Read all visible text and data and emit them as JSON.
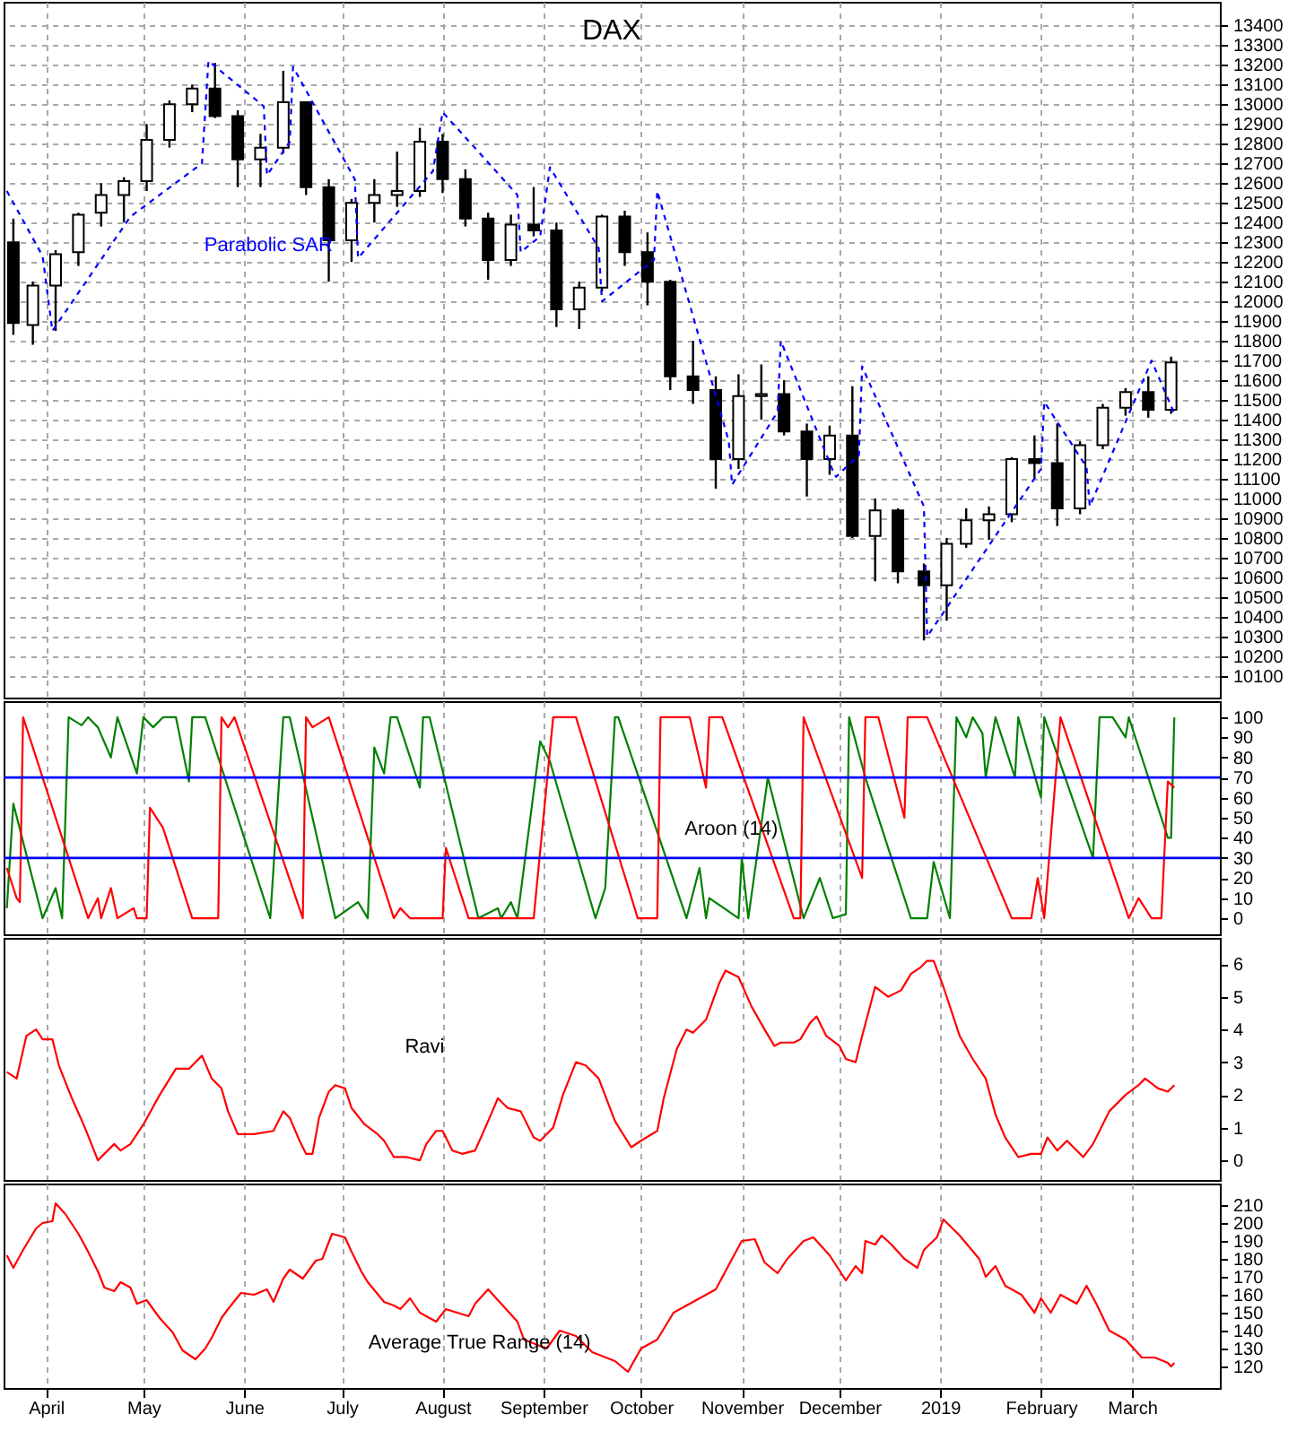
{
  "chart_data": [
    {
      "type": "candlestick",
      "title": "DAX",
      "xlim": [
        "2018-03-19",
        "2019-03-28"
      ],
      "ylim": [
        9990,
        13520
      ],
      "xticks": [
        {
          "value": "2018-04-01",
          "label": null
        },
        {
          "value": "2018-05-01",
          "label": null
        },
        {
          "value": "2018-06-01",
          "label": null
        },
        {
          "value": "2018-07-01",
          "label": null
        },
        {
          "value": "2018-08-01",
          "label": null
        },
        {
          "value": "2018-09-01",
          "label": null
        },
        {
          "value": "2018-10-01",
          "label": null
        },
        {
          "value": "2018-11-01",
          "label": null
        },
        {
          "value": "2018-12-01",
          "label": null
        },
        {
          "value": "2019-01-01",
          "label": null
        },
        {
          "value": "2019-02-01",
          "label": null
        },
        {
          "value": "2019-03-01",
          "label": null
        }
      ],
      "yticks": [
        10100,
        10200,
        10300,
        10400,
        10500,
        10600,
        10700,
        10800,
        10900,
        11000,
        11100,
        11200,
        11300,
        11400,
        11500,
        11600,
        11700,
        11800,
        11900,
        12000,
        12100,
        12200,
        12300,
        12400,
        12500,
        12600,
        12700,
        12800,
        12900,
        13000,
        13100,
        13200,
        13300,
        13400
      ],
      "grid": true,
      "tick_labels": "y",
      "x": [
        "2018-03-22",
        "2018-03-28",
        "2018-04-04",
        "2018-04-11",
        "2018-04-18",
        "2018-04-25",
        "2018-05-02",
        "2018-05-09",
        "2018-05-16",
        "2018-05-23",
        "2018-05-30",
        "2018-06-06",
        "2018-06-13",
        "2018-06-20",
        "2018-06-27",
        "2018-07-04",
        "2018-07-11",
        "2018-07-18",
        "2018-07-25",
        "2018-08-01",
        "2018-08-08",
        "2018-08-15",
        "2018-08-22",
        "2018-08-29",
        "2018-09-05",
        "2018-09-12",
        "2018-09-19",
        "2018-09-26",
        "2018-10-03",
        "2018-10-10",
        "2018-10-17",
        "2018-10-24",
        "2018-10-31",
        "2018-11-07",
        "2018-11-14",
        "2018-11-21",
        "2018-11-28",
        "2018-12-05",
        "2018-12-12",
        "2018-12-19",
        "2018-12-27",
        "2019-01-03",
        "2019-01-09",
        "2019-01-16",
        "2019-01-23",
        "2019-01-30",
        "2019-02-06",
        "2019-02-13",
        "2019-02-20",
        "2019-02-27",
        "2019-03-06",
        "2019-03-13"
      ],
      "ohlc": [
        [
          12300,
          12420,
          11830,
          11890
        ],
        [
          11880,
          12100,
          11780,
          12080
        ],
        [
          12080,
          12260,
          11850,
          12240
        ],
        [
          12250,
          12450,
          12180,
          12440
        ],
        [
          12450,
          12600,
          12380,
          12540
        ],
        [
          12540,
          12630,
          12400,
          12610
        ],
        [
          12610,
          12900,
          12560,
          12820
        ],
        [
          12820,
          13020,
          12780,
          13000
        ],
        [
          13000,
          13100,
          12960,
          13080
        ],
        [
          13080,
          13210,
          12930,
          12940
        ],
        [
          12940,
          12970,
          12580,
          12720
        ],
        [
          12720,
          12850,
          12580,
          12780
        ],
        [
          12780,
          13170,
          12750,
          13010
        ],
        [
          13010,
          13010,
          12540,
          12580
        ],
        [
          12580,
          12620,
          12100,
          12310
        ],
        [
          12310,
          12520,
          12200,
          12500
        ],
        [
          12500,
          12620,
          12400,
          12540
        ],
        [
          12540,
          12760,
          12480,
          12560
        ],
        [
          12560,
          12880,
          12530,
          12810
        ],
        [
          12810,
          12850,
          12550,
          12620
        ],
        [
          12620,
          12670,
          12380,
          12420
        ],
        [
          12420,
          12450,
          12110,
          12210
        ],
        [
          12210,
          12440,
          12180,
          12390
        ],
        [
          12390,
          12580,
          12330,
          12360
        ],
        [
          12360,
          12400,
          11870,
          11960
        ],
        [
          11960,
          12100,
          11860,
          12070
        ],
        [
          12070,
          12440,
          12050,
          12430
        ],
        [
          12430,
          12460,
          12180,
          12250
        ],
        [
          12250,
          12350,
          11980,
          12100
        ],
        [
          12100,
          12110,
          11550,
          11620
        ],
        [
          11620,
          11800,
          11480,
          11550
        ],
        [
          11550,
          11620,
          11050,
          11200
        ],
        [
          11200,
          11630,
          11150,
          11520
        ],
        [
          11520,
          11680,
          11400,
          11530
        ],
        [
          11530,
          11600,
          11320,
          11340
        ],
        [
          11340,
          11380,
          11010,
          11200
        ],
        [
          11200,
          11370,
          11120,
          11320
        ],
        [
          11320,
          11570,
          10800,
          10810
        ],
        [
          10810,
          11000,
          10580,
          10940
        ],
        [
          10940,
          10950,
          10570,
          10630
        ],
        [
          10630,
          10670,
          10280,
          10560
        ],
        [
          10560,
          10800,
          10380,
          10770
        ],
        [
          10770,
          10950,
          10750,
          10890
        ],
        [
          10890,
          10960,
          10790,
          10920
        ],
        [
          10920,
          11210,
          10880,
          11200
        ],
        [
          11200,
          11320,
          11100,
          11180
        ],
        [
          11180,
          11380,
          10860,
          10950
        ],
        [
          10950,
          11290,
          10920,
          11270
        ],
        [
          11270,
          11480,
          11250,
          11460
        ],
        [
          11460,
          11560,
          11420,
          11540
        ],
        [
          11540,
          11620,
          11410,
          11450
        ],
        [
          11450,
          11720,
          11430,
          11690
        ]
      ],
      "series": [
        {
          "name": "Parabolic SAR",
          "type": "line",
          "color": "#0000ff",
          "line_style": "dashed",
          "x": [
            "2018-03-20",
            "2018-03-31",
            "2018-04-03",
            "2018-04-27",
            "2018-05-19",
            "2018-05-21",
            "2018-06-07",
            "2018-06-08",
            "2018-06-15",
            "2018-06-16",
            "2018-07-05",
            "2018-07-06",
            "2018-07-29",
            "2018-08-01",
            "2018-08-24",
            "2018-08-25",
            "2018-08-31",
            "2018-09-03",
            "2018-09-18",
            "2018-09-19",
            "2018-10-05",
            "2018-10-06",
            "2018-10-28",
            "2018-10-29",
            "2018-11-12",
            "2018-11-13",
            "2018-11-29",
            "2018-11-30",
            "2018-12-07",
            "2018-12-08",
            "2018-12-27",
            "2018-12-28",
            "2019-02-01",
            "2019-02-02",
            "2019-02-15",
            "2019-02-16",
            "2019-03-07",
            "2019-03-14"
          ],
          "values": [
            12560,
            12230,
            11850,
            12430,
            12700,
            13220,
            12990,
            12640,
            12810,
            13190,
            12620,
            12220,
            12660,
            12960,
            12540,
            12250,
            12330,
            12680,
            12270,
            12000,
            12210,
            12560,
            11290,
            11070,
            11440,
            11800,
            11140,
            11110,
            11220,
            11670,
            10960,
            10300,
            11150,
            11490,
            11160,
            10960,
            11700,
            11430
          ]
        }
      ]
    },
    {
      "type": "line",
      "annotations": [
        "Aroon (14)"
      ],
      "xlim": [
        "2018-03-19",
        "2019-03-28"
      ],
      "ylim": [
        -8,
        108
      ],
      "xticks": [
        {
          "value": "2018-04-01",
          "label": null
        },
        {
          "value": "2018-05-01",
          "label": null
        },
        {
          "value": "2018-06-01",
          "label": null
        },
        {
          "value": "2018-07-01",
          "label": null
        },
        {
          "value": "2018-08-01",
          "label": null
        },
        {
          "value": "2018-09-01",
          "label": null
        },
        {
          "value": "2018-10-01",
          "label": null
        },
        {
          "value": "2018-11-01",
          "label": null
        },
        {
          "value": "2018-12-01",
          "label": null
        },
        {
          "value": "2019-01-01",
          "label": null
        },
        {
          "value": "2019-02-01",
          "label": null
        },
        {
          "value": "2019-03-01",
          "label": null
        }
      ],
      "yticks": [
        0,
        10,
        20,
        30,
        40,
        50,
        60,
        70,
        80,
        90,
        100
      ],
      "grid": "x",
      "tick_labels": "y",
      "ref_lines": [
        {
          "axis": "y",
          "value": 30,
          "color": "#0000ff"
        },
        {
          "axis": "y",
          "value": 70,
          "color": "#0000ff"
        }
      ],
      "series": [
        {
          "color": "#008000",
          "x": [
            "2018-03-20",
            "2018-03-22",
            "2018-03-31",
            "2018-04-04",
            "2018-04-06",
            "2018-04-08",
            "2018-04-12",
            "2018-04-14",
            "2018-04-17",
            "2018-04-21",
            "2018-04-23",
            "2018-04-29",
            "2018-05-01",
            "2018-05-04",
            "2018-05-07",
            "2018-05-11",
            "2018-05-15",
            "2018-05-16",
            "2018-05-20",
            "2018-06-09",
            "2018-06-13",
            "2018-06-15",
            "2018-06-29",
            "2018-07-06",
            "2018-07-09",
            "2018-07-11",
            "2018-07-14",
            "2018-07-16",
            "2018-07-18",
            "2018-07-25",
            "2018-07-26",
            "2018-07-28",
            "2018-08-12",
            "2018-08-18",
            "2018-08-19",
            "2018-08-22",
            "2018-08-24",
            "2018-08-31",
            "2018-09-03",
            "2018-09-17",
            "2018-09-20",
            "2018-09-23",
            "2018-09-24",
            "2018-10-15",
            "2018-10-19",
            "2018-10-21",
            "2018-10-22",
            "2018-10-31",
            "2018-11-01",
            "2018-11-03",
            "2018-11-09",
            "2018-11-20",
            "2018-11-25",
            "2018-11-29",
            "2018-12-03",
            "2018-12-04",
            "2018-12-09",
            "2018-12-23",
            "2018-12-28",
            "2018-12-30",
            "2019-01-04",
            "2019-01-06",
            "2019-01-09",
            "2019-01-11",
            "2019-01-14",
            "2019-01-15",
            "2019-01-18",
            "2019-01-24",
            "2019-01-25",
            "2019-02-01",
            "2019-02-02",
            "2019-02-17",
            "2019-02-19",
            "2019-02-23",
            "2019-02-27",
            "2019-02-28",
            "2019-03-12",
            "2019-03-13",
            "2019-03-14"
          ],
          "values": [
            5,
            57,
            0,
            15,
            0,
            100,
            96,
            100,
            95,
            80,
            100,
            72,
            100,
            95,
            100,
            100,
            68,
            100,
            100,
            0,
            100,
            100,
            0,
            8,
            0,
            85,
            72,
            100,
            100,
            65,
            100,
            100,
            0,
            5,
            0,
            8,
            0,
            88,
            78,
            0,
            15,
            100,
            100,
            0,
            25,
            0,
            10,
            0,
            30,
            0,
            70,
            0,
            20,
            0,
            2,
            100,
            70,
            0,
            0,
            28,
            0,
            100,
            90,
            100,
            92,
            70,
            100,
            70,
            100,
            60,
            100,
            30,
            100,
            100,
            90,
            100,
            40,
            40,
            100
          ]
        },
        {
          "color": "#ff0000",
          "x": [
            "2018-03-20",
            "2018-03-23",
            "2018-03-24",
            "2018-03-25",
            "2018-03-26",
            "2018-04-14",
            "2018-04-17",
            "2018-04-18",
            "2018-04-21",
            "2018-04-23",
            "2018-04-28",
            "2018-04-29",
            "2018-05-02",
            "2018-05-03",
            "2018-05-07",
            "2018-05-16",
            "2018-05-24",
            "2018-05-25",
            "2018-05-27",
            "2018-05-29",
            "2018-06-19",
            "2018-06-20",
            "2018-06-22",
            "2018-06-27",
            "2018-07-17",
            "2018-07-19",
            "2018-07-22",
            "2018-08-01",
            "2018-08-02",
            "2018-08-09",
            "2018-08-29",
            "2018-09-04",
            "2018-09-11",
            "2018-09-30",
            "2018-10-06",
            "2018-10-07",
            "2018-10-16",
            "2018-10-21",
            "2018-10-22",
            "2018-10-26",
            "2018-11-17",
            "2018-11-19",
            "2018-11-20",
            "2018-12-08",
            "2018-12-09",
            "2018-12-13",
            "2018-12-21",
            "2018-12-22",
            "2018-12-28",
            "2019-01-23",
            "2019-01-29",
            "2019-01-31",
            "2019-02-02",
            "2019-02-07",
            "2019-02-28",
            "2019-03-03",
            "2019-03-07",
            "2019-03-10",
            "2019-03-12",
            "2019-03-14"
          ],
          "values": [
            25,
            10,
            8,
            100,
            95,
            0,
            10,
            0,
            15,
            0,
            5,
            0,
            0,
            55,
            45,
            0,
            0,
            100,
            95,
            100,
            0,
            100,
            95,
            100,
            0,
            5,
            0,
            0,
            35,
            0,
            0,
            100,
            100,
            0,
            0,
            100,
            100,
            65,
            100,
            100,
            0,
            0,
            100,
            20,
            100,
            100,
            50,
            100,
            100,
            0,
            0,
            20,
            0,
            100,
            0,
            10,
            0,
            0,
            68,
            65
          ]
        }
      ]
    },
    {
      "type": "line",
      "annotations": [
        "Ravi"
      ],
      "xlim": [
        "2018-03-19",
        "2019-03-28"
      ],
      "ylim": [
        -0.6,
        6.8
      ],
      "xticks": [
        {
          "value": "2018-04-01",
          "label": null
        },
        {
          "value": "2018-05-01",
          "label": null
        },
        {
          "value": "2018-06-01",
          "label": null
        },
        {
          "value": "2018-07-01",
          "label": null
        },
        {
          "value": "2018-08-01",
          "label": null
        },
        {
          "value": "2018-09-01",
          "label": null
        },
        {
          "value": "2018-10-01",
          "label": null
        },
        {
          "value": "2018-11-01",
          "label": null
        },
        {
          "value": "2018-12-01",
          "label": null
        },
        {
          "value": "2019-01-01",
          "label": null
        },
        {
          "value": "2019-02-01",
          "label": null
        },
        {
          "value": "2019-03-01",
          "label": null
        }
      ],
      "yticks": [
        0,
        1,
        2,
        3,
        4,
        5,
        6
      ],
      "grid": "x",
      "tick_labels": "y",
      "x": [
        "2018-03-20",
        "2018-03-23",
        "2018-03-26",
        "2018-03-29",
        "2018-03-31",
        "2018-04-03",
        "2018-04-05",
        "2018-04-09",
        "2018-04-13",
        "2018-04-17",
        "2018-04-22",
        "2018-04-24",
        "2018-04-27",
        "2018-05-01",
        "2018-05-06",
        "2018-05-11",
        "2018-05-15",
        "2018-05-19",
        "2018-05-22",
        "2018-05-25",
        "2018-05-27",
        "2018-05-30",
        "2018-06-04",
        "2018-06-10",
        "2018-06-13",
        "2018-06-15",
        "2018-06-18",
        "2018-06-20",
        "2018-06-22",
        "2018-06-24",
        "2018-06-27",
        "2018-06-29",
        "2018-07-02",
        "2018-07-04",
        "2018-07-08",
        "2018-07-12",
        "2018-07-14",
        "2018-07-17",
        "2018-07-21",
        "2018-07-25",
        "2018-07-27",
        "2018-07-30",
        "2018-08-01",
        "2018-08-04",
        "2018-08-07",
        "2018-08-11",
        "2018-08-15",
        "2018-08-18",
        "2018-08-21",
        "2018-08-25",
        "2018-08-29",
        "2018-08-31",
        "2018-09-04",
        "2018-09-07",
        "2018-09-11",
        "2018-09-14",
        "2018-09-18",
        "2018-09-23",
        "2018-09-28",
        "2018-10-01",
        "2018-10-06",
        "2018-10-08",
        "2018-10-12",
        "2018-10-15",
        "2018-10-17",
        "2018-10-21",
        "2018-10-25",
        "2018-10-27",
        "2018-10-31",
        "2018-11-04",
        "2018-11-08",
        "2018-11-11",
        "2018-11-13",
        "2018-11-17",
        "2018-11-19",
        "2018-11-22",
        "2018-11-24",
        "2018-11-27",
        "2018-12-01",
        "2018-12-03",
        "2018-12-06",
        "2018-12-08",
        "2018-12-12",
        "2018-12-16",
        "2018-12-20",
        "2018-12-23",
        "2018-12-26",
        "2018-12-28",
        "2018-12-30",
        "2019-01-02",
        "2019-01-07",
        "2019-01-11",
        "2019-01-15",
        "2019-01-18",
        "2019-01-21",
        "2019-01-25",
        "2019-01-29",
        "2019-02-01",
        "2019-02-03",
        "2019-02-06",
        "2019-02-09",
        "2019-02-14",
        "2019-02-17",
        "2019-02-22",
        "2019-02-27",
        "2019-03-03",
        "2019-03-05",
        "2019-03-09",
        "2019-03-12",
        "2019-03-14"
      ],
      "series": [
        {
          "color": "#ff0000",
          "values": [
            2.7,
            2.5,
            3.8,
            4.0,
            3.7,
            3.7,
            2.9,
            1.9,
            1.0,
            0,
            0.5,
            0.3,
            0.5,
            1.1,
            2.0,
            2.8,
            2.8,
            3.2,
            2.5,
            2.2,
            1.5,
            0.8,
            0.8,
            0.9,
            1.5,
            1.3,
            0.6,
            0.2,
            0.2,
            1.3,
            2.1,
            2.3,
            2.2,
            1.6,
            1.1,
            0.8,
            0.6,
            0.1,
            0.1,
            0,
            0.5,
            0.9,
            0.9,
            0.3,
            0.2,
            0.3,
            1.2,
            1.9,
            1.6,
            1.5,
            0.7,
            0.6,
            1.0,
            2.0,
            3.0,
            2.9,
            2.5,
            1.2,
            0.4,
            0.6,
            0.9,
            1.9,
            3.4,
            4.0,
            3.9,
            4.3,
            5.4,
            5.8,
            5.6,
            4.7,
            4.0,
            3.5,
            3.6,
            3.6,
            3.7,
            4.2,
            4.4,
            3.8,
            3.5,
            3.1,
            3.0,
            3.8,
            5.3,
            5.0,
            5.2,
            5.7,
            5.9,
            6.1,
            6.1,
            5.3,
            3.8,
            3.1,
            2.5,
            1.4,
            0.7,
            0.1,
            0.2,
            0.2,
            0.7,
            0.3,
            0.6,
            0.1,
            0.5,
            1.5,
            2.0,
            2.3,
            2.5,
            2.2,
            2.1,
            2.3
          ]
        }
      ]
    },
    {
      "type": "line",
      "annotations": [
        "Average True Range (14)"
      ],
      "xlim": [
        "2018-03-19",
        "2019-03-28"
      ],
      "ylim": [
        108,
        222
      ],
      "xticks": [
        {
          "value": "2018-04-01",
          "label": "April"
        },
        {
          "value": "2018-05-01",
          "label": "May"
        },
        {
          "value": "2018-06-01",
          "label": "June"
        },
        {
          "value": "2018-07-01",
          "label": "July"
        },
        {
          "value": "2018-08-01",
          "label": "August"
        },
        {
          "value": "2018-09-01",
          "label": "September"
        },
        {
          "value": "2018-10-01",
          "label": "October"
        },
        {
          "value": "2018-11-01",
          "label": "November"
        },
        {
          "value": "2018-12-01",
          "label": "December"
        },
        {
          "value": "2019-01-01",
          "label": "2019"
        },
        {
          "value": "2019-02-01",
          "label": "February"
        },
        {
          "value": "2019-03-01",
          "label": "March"
        }
      ],
      "yticks": [
        120,
        130,
        140,
        150,
        160,
        170,
        180,
        190,
        200,
        210
      ],
      "grid": "x",
      "x": [
        "2018-03-20",
        "2018-03-22",
        "2018-03-25",
        "2018-03-29",
        "2018-03-31",
        "2018-04-03",
        "2018-04-04",
        "2018-04-07",
        "2018-04-11",
        "2018-04-14",
        "2018-04-17",
        "2018-04-19",
        "2018-04-22",
        "2018-04-24",
        "2018-04-27",
        "2018-04-29",
        "2018-05-02",
        "2018-05-06",
        "2018-05-10",
        "2018-05-13",
        "2018-05-17",
        "2018-05-20",
        "2018-05-22",
        "2018-05-25",
        "2018-05-27",
        "2018-05-31",
        "2018-06-04",
        "2018-06-08",
        "2018-06-10",
        "2018-06-13",
        "2018-06-15",
        "2018-06-19",
        "2018-06-23",
        "2018-06-25",
        "2018-06-28",
        "2018-07-02",
        "2018-07-04",
        "2018-07-07",
        "2018-07-09",
        "2018-07-14",
        "2018-07-17",
        "2018-07-19",
        "2018-07-22",
        "2018-07-25",
        "2018-07-30",
        "2018-08-02",
        "2018-08-09",
        "2018-08-11",
        "2018-08-15",
        "2018-08-19",
        "2018-08-24",
        "2018-08-26",
        "2018-09-02",
        "2018-09-06",
        "2018-09-11",
        "2018-09-16",
        "2018-09-23",
        "2018-09-27",
        "2018-10-01",
        "2018-10-06",
        "2018-10-11",
        "2018-10-16",
        "2018-10-21",
        "2018-10-24",
        "2018-10-29",
        "2018-11-01",
        "2018-11-05",
        "2018-11-08",
        "2018-11-12",
        "2018-11-15",
        "2018-11-20",
        "2018-11-23",
        "2018-11-28",
        "2018-12-03",
        "2018-12-06",
        "2018-12-08",
        "2018-12-09",
        "2018-12-12",
        "2018-12-14",
        "2018-12-17",
        "2018-12-21",
        "2018-12-25",
        "2018-12-27",
        "2018-12-31",
        "2019-01-02",
        "2019-01-07",
        "2019-01-13",
        "2019-01-15",
        "2019-01-18",
        "2019-01-21",
        "2019-01-26",
        "2019-01-30",
        "2019-02-01",
        "2019-02-04",
        "2019-02-07",
        "2019-02-12",
        "2019-02-15",
        "2019-02-18",
        "2019-02-22",
        "2019-02-27",
        "2019-03-04",
        "2019-03-08",
        "2019-03-12",
        "2019-03-13",
        "2019-03-14"
      ],
      "series": [
        {
          "color": "#ff0000",
          "values": [
            182,
            175,
            185,
            197,
            200,
            201,
            211,
            205,
            194,
            184,
            173,
            164,
            162,
            167,
            164,
            155,
            157,
            147,
            139,
            129,
            124,
            130,
            136,
            147,
            152,
            161,
            160,
            163,
            156,
            169,
            174,
            169,
            179,
            180,
            194,
            192,
            184,
            173,
            167,
            156,
            154,
            152,
            158,
            150,
            145,
            152,
            148,
            155,
            163,
            155,
            145,
            135,
            130,
            140,
            137,
            128,
            123,
            117,
            130,
            135,
            150,
            155,
            160,
            163,
            180,
            190,
            191,
            178,
            172,
            180,
            190,
            192,
            182,
            168,
            176,
            172,
            190,
            188,
            193,
            188,
            180,
            175,
            185,
            192,
            202,
            193,
            180,
            170,
            176,
            165,
            160,
            150,
            158,
            150,
            160,
            155,
            165,
            155,
            140,
            135,
            125,
            125,
            122,
            120,
            122
          ]
        }
      ]
    }
  ]
}
